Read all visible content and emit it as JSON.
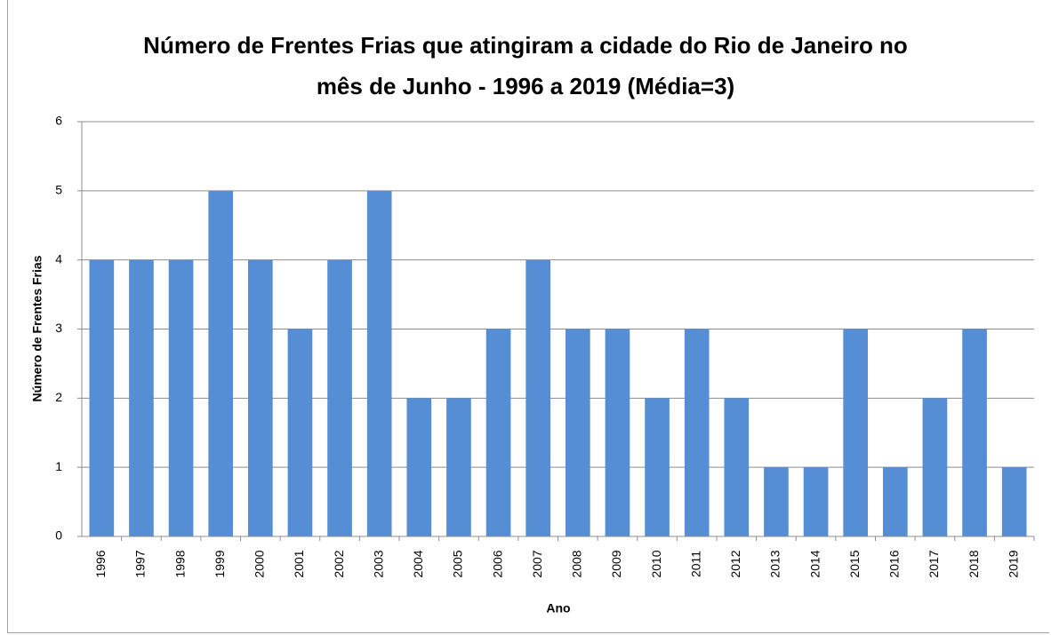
{
  "chart_data": {
    "type": "bar",
    "title": "Número de Frentes Frias que atingiram a cidade do Rio de Janeiro no mês de Junho - 1996 a 2019 (Média=3)",
    "x_label": "Ano",
    "y_label": "Número de Frentes Frias",
    "categories": [
      "1996",
      "1997",
      "1998",
      "1999",
      "2000",
      "2001",
      "2002",
      "2003",
      "2004",
      "2005",
      "2006",
      "2007",
      "2008",
      "2009",
      "2010",
      "2011",
      "2012",
      "2013",
      "2014",
      "2015",
      "2016",
      "2017",
      "2018",
      "2019"
    ],
    "values": [
      4,
      4,
      4,
      5,
      4,
      3,
      4,
      5,
      2,
      2,
      3,
      4,
      3,
      3,
      2,
      3,
      2,
      1,
      1,
      3,
      1,
      2,
      3,
      1
    ],
    "color": "#558ed5",
    "ylim": [
      0,
      6
    ],
    "yticks": [
      0,
      1,
      2,
      3,
      4,
      5,
      6
    ],
    "grid": true
  }
}
